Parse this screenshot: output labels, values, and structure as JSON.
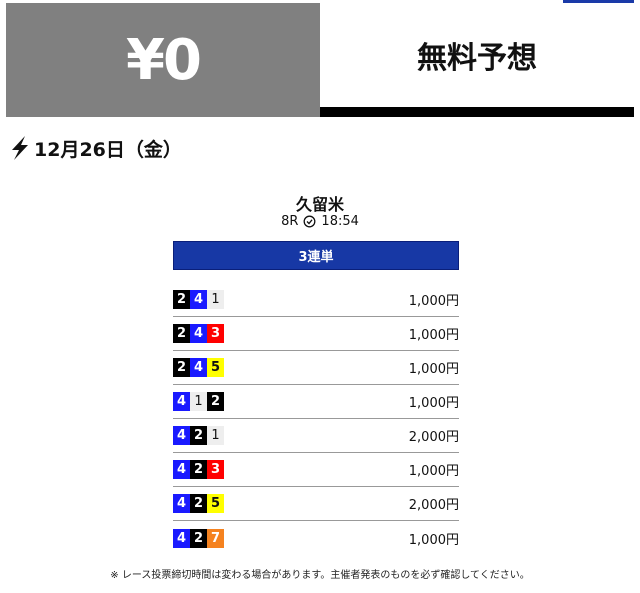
{
  "header": {
    "price": "¥0",
    "label": "無料予想"
  },
  "date": "12月26日（金）",
  "race": {
    "venue": "久留米",
    "number": "8R",
    "time": "18:54"
  },
  "bet_type": "3連単",
  "colors": {
    "1": "#eeeeee",
    "2": "#000000",
    "3": "#ff0000",
    "4": "#1a1aff",
    "5": "#ffff00",
    "7": "#f5821f",
    "bet_type_bg": "#1738a5"
  },
  "bets": [
    {
      "combo": [
        "2",
        "4",
        "1"
      ],
      "amount": "1,000円"
    },
    {
      "combo": [
        "2",
        "4",
        "3"
      ],
      "amount": "1,000円"
    },
    {
      "combo": [
        "2",
        "4",
        "5"
      ],
      "amount": "1,000円"
    },
    {
      "combo": [
        "4",
        "1",
        "2"
      ],
      "amount": "1,000円"
    },
    {
      "combo": [
        "4",
        "2",
        "1"
      ],
      "amount": "2,000円"
    },
    {
      "combo": [
        "4",
        "2",
        "3"
      ],
      "amount": "1,000円"
    },
    {
      "combo": [
        "4",
        "2",
        "5"
      ],
      "amount": "2,000円"
    },
    {
      "combo": [
        "4",
        "2",
        "7"
      ],
      "amount": "1,000円"
    }
  ],
  "note": "※ レース投票締切時間は変わる場合があります。主催者発表のものを必ず確認してください。"
}
